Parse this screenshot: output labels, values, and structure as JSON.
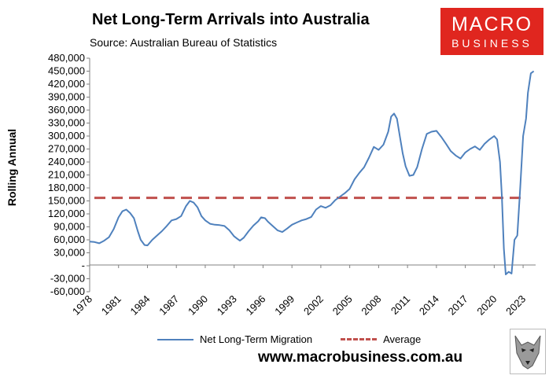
{
  "title": "Net Long-Term Arrivals into Australia",
  "subtitle": "Source: Australian Bureau of Statistics",
  "logo": {
    "line1": "MACRO",
    "line2": "BUSINESS",
    "color": "#e0261f"
  },
  "website": "www.macrobusiness.com.au",
  "chart_data": {
    "type": "line",
    "ylabel": "Rolling Annual",
    "ylim": [
      -60000,
      480000
    ],
    "y_ticks": [
      {
        "value": 480000,
        "label": "480,000"
      },
      {
        "value": 450000,
        "label": "450,000"
      },
      {
        "value": 420000,
        "label": "420,000"
      },
      {
        "value": 390000,
        "label": "390,000"
      },
      {
        "value": 360000,
        "label": "360,000"
      },
      {
        "value": 330000,
        "label": "330,000"
      },
      {
        "value": 300000,
        "label": "300,000"
      },
      {
        "value": 270000,
        "label": "270,000"
      },
      {
        "value": 240000,
        "label": "240,000"
      },
      {
        "value": 210000,
        "label": "210,000"
      },
      {
        "value": 180000,
        "label": "180,000"
      },
      {
        "value": 150000,
        "label": "150,000"
      },
      {
        "value": 120000,
        "label": "120,000"
      },
      {
        "value": 90000,
        "label": "90,000"
      },
      {
        "value": 60000,
        "label": "60,000"
      },
      {
        "value": 30000,
        "label": "30,000"
      },
      {
        "value": 0,
        "label": "-"
      },
      {
        "value": -30000,
        "label": "-30,000"
      },
      {
        "value": -60000,
        "label": "-60,000"
      }
    ],
    "xlim": [
      1978,
      2024.3
    ],
    "x_ticks": [
      "1978",
      "1981",
      "1984",
      "1987",
      "1990",
      "1993",
      "1996",
      "1999",
      "2002",
      "2005",
      "2008",
      "2011",
      "2014",
      "2017",
      "2020",
      "2023"
    ],
    "grid": false,
    "legend_position": "bottom",
    "series": [
      {
        "name": "Net Long-Term Migration",
        "color": "#4f81bd",
        "style": "solid",
        "points": [
          [
            1978.0,
            56000
          ],
          [
            1978.5,
            55000
          ],
          [
            1979.0,
            52000
          ],
          [
            1979.5,
            58000
          ],
          [
            1980.0,
            66000
          ],
          [
            1980.5,
            85000
          ],
          [
            1981.0,
            112000
          ],
          [
            1981.4,
            126000
          ],
          [
            1981.8,
            130000
          ],
          [
            1982.2,
            122000
          ],
          [
            1982.6,
            110000
          ],
          [
            1983.0,
            80000
          ],
          [
            1983.3,
            60000
          ],
          [
            1983.7,
            48000
          ],
          [
            1984.0,
            47000
          ],
          [
            1984.5,
            60000
          ],
          [
            1985.0,
            70000
          ],
          [
            1985.5,
            80000
          ],
          [
            1986.0,
            92000
          ],
          [
            1986.5,
            105000
          ],
          [
            1987.0,
            108000
          ],
          [
            1987.5,
            115000
          ],
          [
            1988.0,
            138000
          ],
          [
            1988.4,
            150000
          ],
          [
            1988.8,
            146000
          ],
          [
            1989.2,
            135000
          ],
          [
            1989.6,
            115000
          ],
          [
            1990.0,
            105000
          ],
          [
            1990.5,
            97000
          ],
          [
            1991.0,
            95000
          ],
          [
            1991.5,
            94000
          ],
          [
            1992.0,
            92000
          ],
          [
            1992.5,
            82000
          ],
          [
            1993.0,
            68000
          ],
          [
            1993.3,
            63000
          ],
          [
            1993.6,
            58000
          ],
          [
            1994.0,
            65000
          ],
          [
            1994.5,
            80000
          ],
          [
            1995.0,
            93000
          ],
          [
            1995.5,
            103000
          ],
          [
            1995.8,
            112000
          ],
          [
            1996.2,
            110000
          ],
          [
            1996.5,
            102000
          ],
          [
            1997.0,
            92000
          ],
          [
            1997.5,
            82000
          ],
          [
            1998.0,
            78000
          ],
          [
            1998.5,
            86000
          ],
          [
            1999.0,
            95000
          ],
          [
            1999.5,
            100000
          ],
          [
            2000.0,
            105000
          ],
          [
            2000.5,
            108000
          ],
          [
            2001.0,
            113000
          ],
          [
            2001.5,
            130000
          ],
          [
            2002.0,
            138000
          ],
          [
            2002.5,
            134000
          ],
          [
            2003.0,
            140000
          ],
          [
            2003.5,
            152000
          ],
          [
            2004.0,
            160000
          ],
          [
            2004.5,
            168000
          ],
          [
            2005.0,
            178000
          ],
          [
            2005.5,
            200000
          ],
          [
            2006.0,
            215000
          ],
          [
            2006.5,
            228000
          ],
          [
            2007.0,
            250000
          ],
          [
            2007.5,
            275000
          ],
          [
            2008.0,
            268000
          ],
          [
            2008.5,
            280000
          ],
          [
            2009.0,
            310000
          ],
          [
            2009.3,
            345000
          ],
          [
            2009.6,
            352000
          ],
          [
            2009.9,
            340000
          ],
          [
            2010.2,
            300000
          ],
          [
            2010.5,
            260000
          ],
          [
            2010.8,
            230000
          ],
          [
            2011.2,
            208000
          ],
          [
            2011.6,
            210000
          ],
          [
            2012.0,
            228000
          ],
          [
            2012.5,
            270000
          ],
          [
            2013.0,
            305000
          ],
          [
            2013.5,
            310000
          ],
          [
            2014.0,
            312000
          ],
          [
            2014.5,
            298000
          ],
          [
            2015.0,
            282000
          ],
          [
            2015.5,
            265000
          ],
          [
            2016.0,
            255000
          ],
          [
            2016.5,
            248000
          ],
          [
            2017.0,
            262000
          ],
          [
            2017.5,
            270000
          ],
          [
            2018.0,
            276000
          ],
          [
            2018.5,
            268000
          ],
          [
            2019.0,
            282000
          ],
          [
            2019.5,
            292000
          ],
          [
            2020.0,
            300000
          ],
          [
            2020.3,
            292000
          ],
          [
            2020.6,
            240000
          ],
          [
            2020.8,
            160000
          ],
          [
            2021.0,
            40000
          ],
          [
            2021.2,
            -20000
          ],
          [
            2021.5,
            -14000
          ],
          [
            2021.8,
            -18000
          ],
          [
            2022.1,
            60000
          ],
          [
            2022.4,
            70000
          ],
          [
            2022.7,
            180000
          ],
          [
            2023.0,
            300000
          ],
          [
            2023.3,
            340000
          ],
          [
            2023.5,
            400000
          ],
          [
            2023.8,
            445000
          ],
          [
            2024.1,
            450000
          ]
        ]
      },
      {
        "name": "Average",
        "color": "#c0504d",
        "style": "dashed",
        "value": 157000
      }
    ]
  }
}
